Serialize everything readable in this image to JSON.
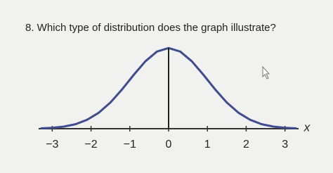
{
  "question": "8. Which type of distribution does the graph illustrate?",
  "chart_data": {
    "type": "line",
    "x": [
      -3.3,
      -3.0,
      -2.7,
      -2.4,
      -2.1,
      -1.8,
      -1.5,
      -1.2,
      -0.9,
      -0.6,
      -0.3,
      0,
      0.3,
      0.6,
      0.9,
      1.2,
      1.5,
      1.8,
      2.1,
      2.4,
      2.7,
      3.0,
      3.3
    ],
    "series": [
      {
        "color": "#3f4d8c",
        "values": [
          0.0017,
          0.0044,
          0.0104,
          0.0224,
          0.044,
          0.079,
          0.1295,
          0.1942,
          0.2661,
          0.3332,
          0.3814,
          0.3989,
          0.3814,
          0.3332,
          0.2661,
          0.1942,
          0.1295,
          0.079,
          0.044,
          0.0224,
          0.0104,
          0.0044,
          0.0017
        ]
      }
    ],
    "xlim": [
      -3.35,
      3.35
    ],
    "ylim": [
      0,
      0.4
    ],
    "xticks": [
      {
        "value": -3,
        "label": "−3"
      },
      {
        "value": -2,
        "label": "−2"
      },
      {
        "value": -1,
        "label": "−1"
      },
      0,
      1,
      2,
      3
    ],
    "xlabel": "x",
    "mean_line": true
  }
}
